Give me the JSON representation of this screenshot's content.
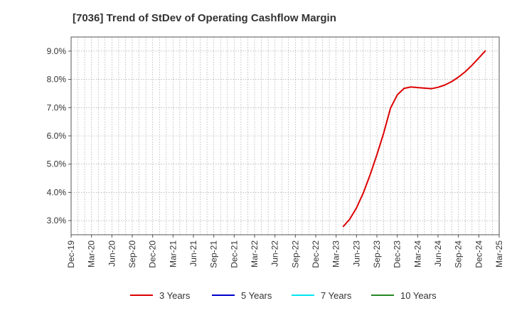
{
  "chart_data": {
    "type": "line",
    "title": "[7036]  Trend of StDev of Operating Cashflow Margin",
    "xlabel": "",
    "ylabel": "",
    "x_ticks": [
      "Dec-19",
      "Mar-20",
      "Jun-20",
      "Sep-20",
      "Dec-20",
      "Mar-21",
      "Jun-21",
      "Sep-21",
      "Dec-21",
      "Mar-22",
      "Jun-22",
      "Sep-22",
      "Dec-22",
      "Mar-23",
      "Jun-23",
      "Sep-23",
      "Dec-23",
      "Mar-24",
      "Jun-24",
      "Sep-24",
      "Dec-24",
      "Mar-25"
    ],
    "y_ticks": [
      "3.0%",
      "4.0%",
      "5.0%",
      "6.0%",
      "7.0%",
      "8.0%",
      "9.0%"
    ],
    "y_tick_values": [
      3.0,
      4.0,
      5.0,
      6.0,
      7.0,
      8.0,
      9.0
    ],
    "ylim": [
      2.5,
      9.5
    ],
    "grid": true,
    "legend_position": "bottom",
    "series": [
      {
        "name": "3 Years",
        "color": "#dd0000",
        "points": [
          [
            "Apr-23",
            2.78
          ],
          [
            "May-23",
            3.05
          ],
          [
            "Jun-23",
            3.45
          ],
          [
            "Jul-23",
            3.98
          ],
          [
            "Aug-23",
            4.62
          ],
          [
            "Sep-23",
            5.33
          ],
          [
            "Oct-23",
            6.1
          ],
          [
            "Nov-23",
            6.98
          ],
          [
            "Dec-23",
            7.45
          ],
          [
            "Jan-24",
            7.68
          ],
          [
            "Feb-24",
            7.73
          ],
          [
            "Mar-24",
            7.71
          ],
          [
            "Apr-24",
            7.69
          ],
          [
            "May-24",
            7.67
          ],
          [
            "Jun-24",
            7.72
          ],
          [
            "Jul-24",
            7.8
          ],
          [
            "Aug-24",
            7.92
          ],
          [
            "Sep-24",
            8.08
          ],
          [
            "Oct-24",
            8.27
          ],
          [
            "Nov-24",
            8.5
          ],
          [
            "Dec-24",
            8.76
          ],
          [
            "Jan-25",
            9.02
          ]
        ]
      },
      {
        "name": "5 Years",
        "color": "#0000cc",
        "points": []
      },
      {
        "name": "7 Years",
        "color": "#00e5ee",
        "points": []
      },
      {
        "name": "10 Years",
        "color": "#228822",
        "points": []
      }
    ]
  }
}
